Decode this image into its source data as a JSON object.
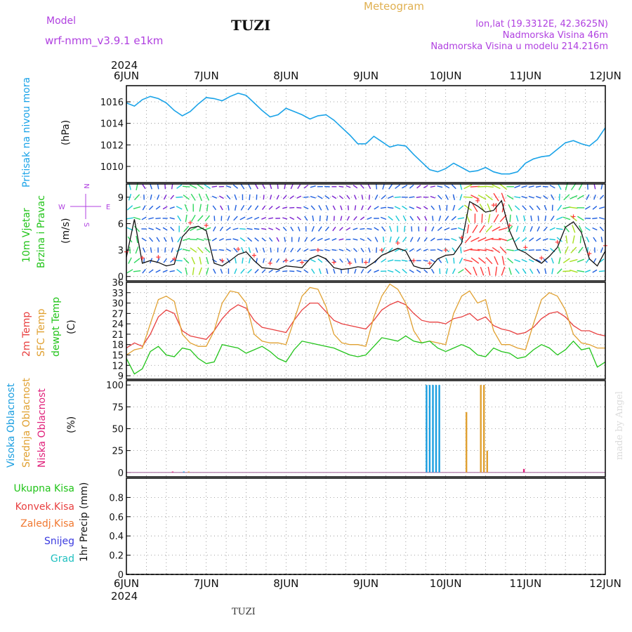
{
  "header": {
    "model_label": "Model",
    "model_name": "wrf-nmm_v3.9.1  e1km",
    "station": "TUZI",
    "meteogram": "Meteogram",
    "lonlat": "lon,lat (19.3312E, 42.3625N)",
    "elevation": "Nadmorska Visina 46m",
    "model_elevation": "Nadmorska Visina u modelu 214.216m"
  },
  "footer": {
    "station": "TUZI",
    "watermark": "made by Angel"
  },
  "colors": {
    "pressure": "#1aa3e8",
    "wind_label": "#22c41a",
    "temp2m": "#e84040",
    "sfc_temp": "#e0a030",
    "dewpoint": "#22c41a",
    "cloud_high": "#1a9ee0",
    "cloud_mid": "#e0a030",
    "cloud_low": "#e0207a",
    "compass": "#b040e0",
    "precip_total": "#22c41a",
    "precip_conv": "#e84040",
    "precip_frozen": "#f07830",
    "precip_snow": "#3a3ae0",
    "precip_grad": "#20c0c0"
  },
  "chart_data": [
    {
      "type": "line",
      "id": "pressure",
      "ylabel_lines": [
        "Pritisak na nivou mora",
        "(hPa)"
      ],
      "ylim": [
        1008.5,
        1017.5
      ],
      "yticks": [
        1010,
        1012,
        1014,
        1016
      ],
      "x_unit": "days since 2024-06-06 00",
      "top_axis_year": "2024",
      "xtick_labels": [
        "6JUN",
        "7JUN",
        "8JUN",
        "9JUN",
        "10JUN",
        "11JUN",
        "12JUN"
      ],
      "series": [
        {
          "x": [
            0,
            0.1,
            0.2,
            0.3,
            0.4,
            0.5,
            0.6,
            0.7,
            0.8,
            0.9,
            1.0,
            1.1,
            1.2,
            1.3,
            1.4,
            1.5,
            1.6,
            1.7,
            1.8,
            1.9,
            2.0,
            2.1,
            2.2,
            2.3,
            2.4,
            2.5,
            2.6,
            2.7,
            2.8,
            2.9,
            3.0,
            3.1,
            3.2,
            3.3,
            3.4,
            3.5,
            3.6,
            3.7,
            3.8,
            3.9,
            4.0,
            4.1,
            4.2,
            4.3,
            4.4,
            4.5,
            4.6,
            4.7,
            4.8,
            4.9,
            5.0,
            5.1,
            5.2,
            5.3,
            5.4,
            5.5,
            5.6,
            5.7,
            5.8,
            5.9,
            6.0
          ],
          "values": [
            1015.9,
            1015.6,
            1016.2,
            1016.5,
            1016.3,
            1015.9,
            1015.2,
            1014.7,
            1015.1,
            1015.8,
            1016.4,
            1016.3,
            1016.1,
            1016.5,
            1016.8,
            1016.6,
            1015.9,
            1015.2,
            1014.6,
            1014.8,
            1015.4,
            1015.1,
            1014.8,
            1014.4,
            1014.7,
            1014.8,
            1014.3,
            1013.6,
            1012.9,
            1012.1,
            1012.1,
            1012.8,
            1012.3,
            1011.8,
            1012.0,
            1011.9,
            1011.1,
            1010.4,
            1009.7,
            1009.5,
            1009.8,
            1010.3,
            1009.9,
            1009.5,
            1009.6,
            1009.9,
            1009.5,
            1009.3,
            1009.3,
            1009.5,
            1010.3,
            1010.7,
            1010.9,
            1011.0,
            1011.6,
            1012.2,
            1012.4,
            1012.1,
            1011.9,
            1012.5,
            1013.6
          ]
        }
      ]
    },
    {
      "type": "line",
      "id": "wind",
      "ylabel_lines": [
        "10m Vjetar",
        "Brzina i Pravac",
        "(m/s)"
      ],
      "ylim": [
        -0.5,
        10.5
      ],
      "yticks": [
        0,
        3,
        6,
        9
      ],
      "compass": {
        "north": "N",
        "south": "S",
        "east": "E",
        "west": "W"
      },
      "series": [
        {
          "x": [
            0,
            0.1,
            0.2,
            0.3,
            0.4,
            0.5,
            0.6,
            0.7,
            0.8,
            0.9,
            1.0,
            1.1,
            1.2,
            1.3,
            1.4,
            1.5,
            1.6,
            1.7,
            1.8,
            1.9,
            2.0,
            2.1,
            2.2,
            2.3,
            2.4,
            2.5,
            2.6,
            2.7,
            2.8,
            2.9,
            3.0,
            3.1,
            3.2,
            3.3,
            3.4,
            3.5,
            3.6,
            3.7,
            3.8,
            3.9,
            4.0,
            4.1,
            4.2,
            4.3,
            4.4,
            4.5,
            4.6,
            4.7,
            4.8,
            4.9,
            5.0,
            5.1,
            5.2,
            5.3,
            5.4,
            5.5,
            5.6,
            5.7,
            5.8,
            5.9,
            6.0
          ],
          "values": [
            2.2,
            6.5,
            1.5,
            1.8,
            1.6,
            1.2,
            1.4,
            4.5,
            5.5,
            5.7,
            5.2,
            1.5,
            1.2,
            1.8,
            2.5,
            2.8,
            1.8,
            1.0,
            0.9,
            0.8,
            1.2,
            1.1,
            1.0,
            2.0,
            2.4,
            2.0,
            1.0,
            0.8,
            0.9,
            1.1,
            1.0,
            1.6,
            2.4,
            2.8,
            3.2,
            2.9,
            1.2,
            0.9,
            0.9,
            2.0,
            2.4,
            2.5,
            3.8,
            8.5,
            8.0,
            7.3,
            7.5,
            8.6,
            5.2,
            3.1,
            2.7,
            2.0,
            1.5,
            2.3,
            3.3,
            5.6,
            6.2,
            5.0,
            2.0,
            1.2,
            2.9
          ]
        }
      ]
    },
    {
      "type": "line",
      "id": "temperature",
      "ylabel_lines": [
        "2m Temp",
        "SFC Temp",
        "dewpt Temp",
        "(C)"
      ],
      "ylim": [
        8,
        36
      ],
      "yticks": [
        9,
        12,
        15,
        18,
        21,
        24,
        27,
        30,
        33,
        36
      ],
      "series": [
        {
          "name": "2m Temp",
          "x": [
            0,
            0.1,
            0.2,
            0.3,
            0.4,
            0.5,
            0.6,
            0.7,
            0.8,
            0.9,
            1.0,
            1.1,
            1.2,
            1.3,
            1.4,
            1.5,
            1.6,
            1.7,
            1.8,
            1.9,
            2.0,
            2.1,
            2.2,
            2.3,
            2.4,
            2.5,
            2.6,
            2.7,
            2.8,
            2.9,
            3.0,
            3.1,
            3.2,
            3.3,
            3.4,
            3.5,
            3.6,
            3.7,
            3.8,
            3.9,
            4.0,
            4.1,
            4.2,
            4.3,
            4.4,
            4.5,
            4.6,
            4.7,
            4.8,
            4.9,
            5.0,
            5.1,
            5.2,
            5.3,
            5.4,
            5.5,
            5.6,
            5.7,
            5.8,
            5.9,
            6.0
          ],
          "values": [
            17,
            18.5,
            17.5,
            21,
            26,
            28,
            27,
            22,
            20.5,
            20,
            19.5,
            22,
            25.5,
            28,
            29.5,
            28.5,
            25,
            23,
            22.5,
            22,
            21.5,
            25,
            28,
            30,
            30,
            27.5,
            25,
            24,
            23.5,
            23,
            22.5,
            25,
            28,
            29.5,
            30.5,
            29.5,
            27,
            25,
            24.5,
            24.5,
            24,
            25.5,
            26,
            27,
            25,
            26,
            23.5,
            22.5,
            22,
            21,
            21.5,
            23,
            25.5,
            27,
            27.5,
            26,
            23.5,
            22,
            22,
            21,
            20.5
          ]
        },
        {
          "name": "SFC Temp",
          "x": [
            0,
            0.1,
            0.2,
            0.3,
            0.4,
            0.5,
            0.6,
            0.7,
            0.8,
            0.9,
            1.0,
            1.1,
            1.2,
            1.3,
            1.4,
            1.5,
            1.6,
            1.7,
            1.8,
            1.9,
            2.0,
            2.1,
            2.2,
            2.3,
            2.4,
            2.5,
            2.6,
            2.7,
            2.8,
            2.9,
            3.0,
            3.1,
            3.2,
            3.3,
            3.4,
            3.5,
            3.6,
            3.7,
            3.8,
            3.9,
            4.0,
            4.1,
            4.2,
            4.3,
            4.4,
            4.5,
            4.6,
            4.7,
            4.8,
            4.9,
            5.0,
            5.1,
            5.2,
            5.3,
            5.4,
            5.5,
            5.6,
            5.7,
            5.8,
            5.9,
            6.0
          ],
          "values": [
            15,
            16.5,
            17,
            24,
            31,
            32,
            30.5,
            21,
            18.5,
            17.5,
            17.5,
            22,
            30,
            33.5,
            33,
            30,
            21,
            19,
            18.5,
            18.5,
            18,
            25,
            32,
            34.5,
            34,
            29,
            21,
            18.5,
            18,
            18,
            17.5,
            26,
            32,
            35.5,
            34,
            30,
            22,
            18.5,
            19,
            18.5,
            18,
            27,
            32,
            33.5,
            30,
            31,
            22,
            18,
            18,
            17,
            16.5,
            24,
            31,
            33,
            32,
            28,
            21,
            18.5,
            18,
            17,
            17
          ]
        },
        {
          "name": "dewpt Temp",
          "x": [
            0,
            0.1,
            0.2,
            0.3,
            0.4,
            0.5,
            0.6,
            0.7,
            0.8,
            0.9,
            1.0,
            1.1,
            1.2,
            1.3,
            1.4,
            1.5,
            1.6,
            1.7,
            1.8,
            1.9,
            2.0,
            2.1,
            2.2,
            2.3,
            2.4,
            2.5,
            2.6,
            2.7,
            2.8,
            2.9,
            3.0,
            3.1,
            3.2,
            3.3,
            3.4,
            3.5,
            3.6,
            3.7,
            3.8,
            3.9,
            4.0,
            4.1,
            4.2,
            4.3,
            4.4,
            4.5,
            4.6,
            4.7,
            4.8,
            4.9,
            5.0,
            5.1,
            5.2,
            5.3,
            5.4,
            5.5,
            5.6,
            5.7,
            5.8,
            5.9,
            6.0
          ],
          "values": [
            14,
            9.5,
            11,
            16,
            17.5,
            15,
            14.5,
            17,
            16.5,
            14,
            12.5,
            13,
            18,
            17.5,
            17,
            15.5,
            16.5,
            17.5,
            16,
            14,
            13,
            16.5,
            19,
            18.5,
            18,
            17.5,
            17,
            16,
            15,
            14.5,
            15,
            17.5,
            20,
            19.5,
            19,
            20.5,
            19,
            18.5,
            19,
            17,
            16,
            17,
            18,
            17,
            15,
            14.5,
            17,
            16,
            15.5,
            14,
            14.5,
            16.5,
            18,
            17,
            15,
            16.5,
            19,
            16.5,
            17,
            11.5,
            13
          ]
        }
      ]
    },
    {
      "type": "bar",
      "id": "clouds",
      "ylabel_lines": [
        "Visoka Oblacnost",
        "Srednja Oblacnost",
        "Niska Oblacnost",
        "(%)"
      ],
      "ylim": [
        -5,
        105
      ],
      "yticks": [
        0,
        25,
        50,
        75,
        100
      ],
      "series": [
        {
          "name": "Visoka Oblacnost",
          "x": [
            3.76,
            3.8,
            3.84,
            3.88,
            3.92,
            0.72
          ],
          "values": [
            100,
            100,
            100,
            100,
            100,
            1
          ]
        },
        {
          "name": "Srednja Oblacnost",
          "x": [
            4.26,
            4.44,
            4.48,
            4.52,
            0.78
          ],
          "values": [
            69,
            100,
            100,
            25,
            1
          ]
        },
        {
          "name": "Niska Oblacnost",
          "x": [
            0.58,
            4.98
          ],
          "values": [
            1,
            4
          ]
        }
      ]
    },
    {
      "type": "bar",
      "id": "precip",
      "ylabel_lines": [
        "1hr Precip (mm)"
      ],
      "ylim": [
        0,
        1.0
      ],
      "yticks": [
        0,
        0.2,
        0.4,
        0.6,
        0.8
      ],
      "ytick_labels": [
        "0",
        "0.2",
        "0.4",
        "0.6",
        "0.8"
      ],
      "bottom_axis_year": "2024",
      "legend": [
        "Ukupna Kisa",
        "Konvek.Kisa",
        "Zaledj.Kisa",
        "Snijeg",
        "Grad"
      ],
      "series": []
    }
  ]
}
